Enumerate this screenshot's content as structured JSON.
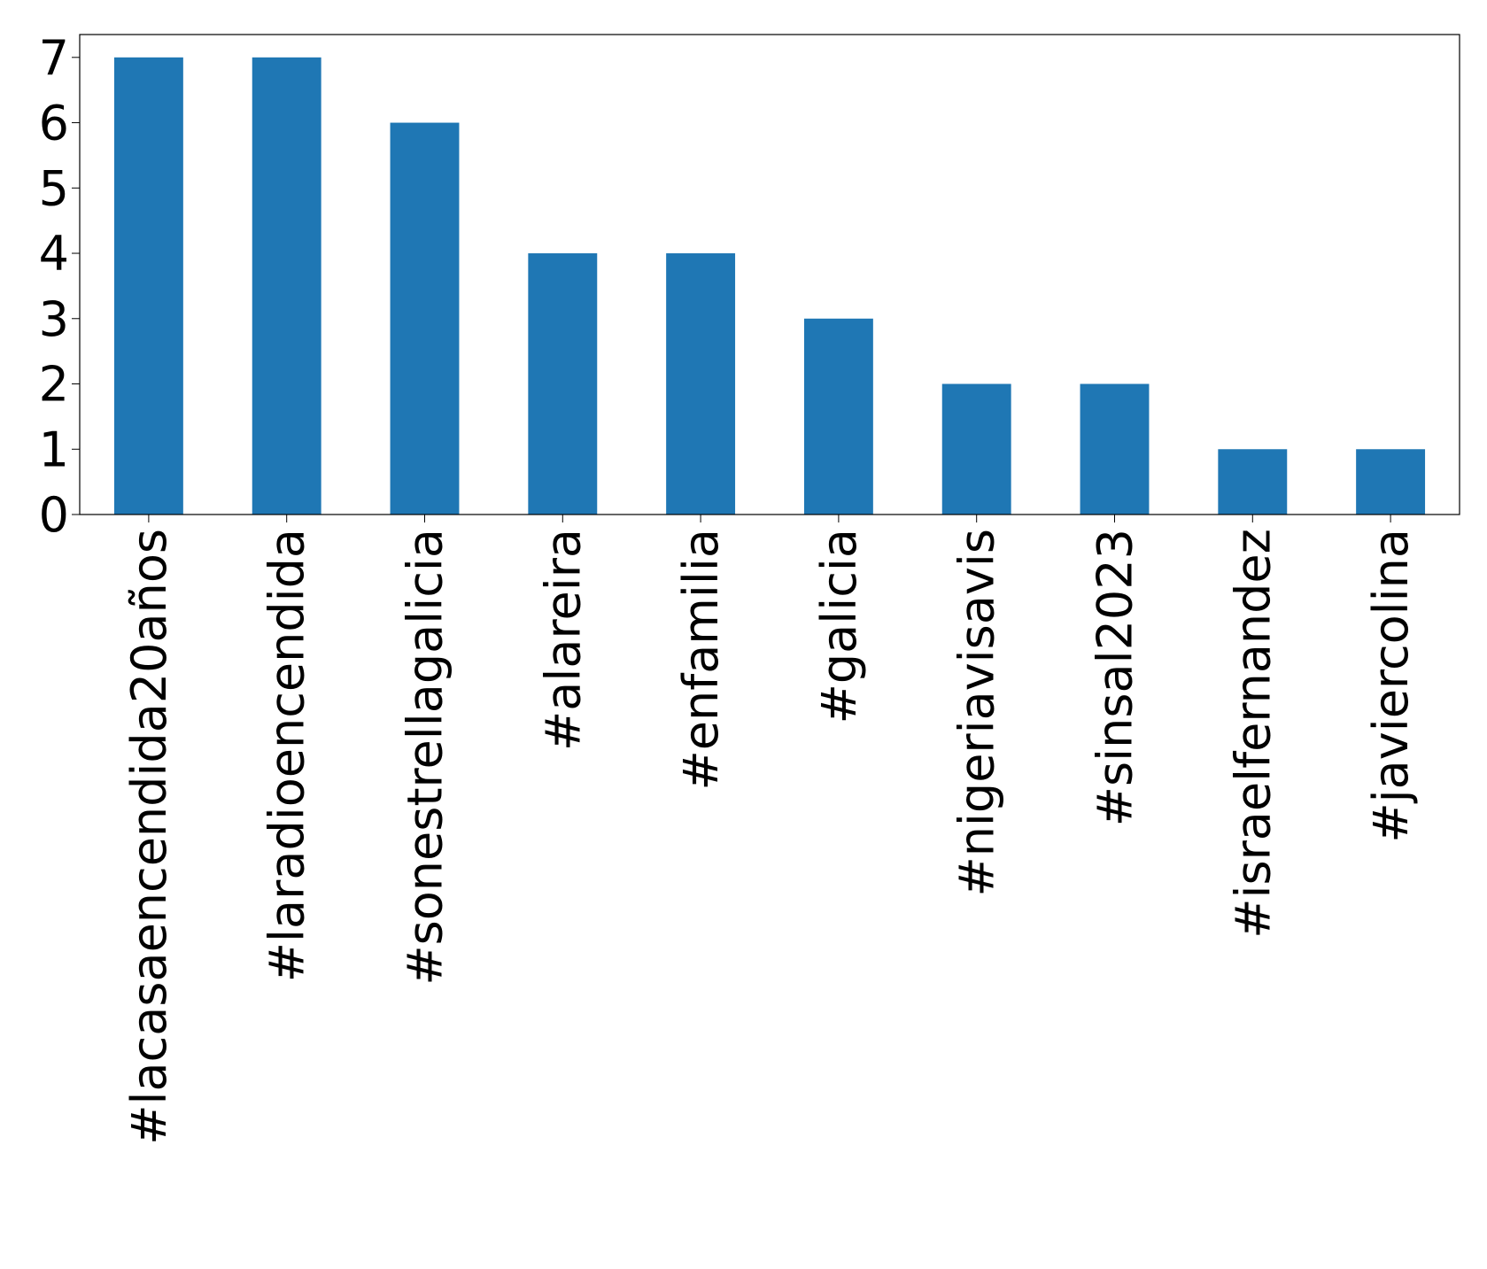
{
  "chart_data": {
    "type": "bar",
    "categories": [
      "#lacasaencendida20años",
      "#laradioencendida",
      "#sonestrellagalicia",
      "#alareira",
      "#enfamilia",
      "#galicia",
      "#nigeriavisavis",
      "#sinsal2023",
      "#israelfernandez",
      "#javiercolina"
    ],
    "values": [
      7,
      7,
      6,
      4,
      4,
      3,
      2,
      2,
      1,
      1
    ],
    "color": "#1f77b4",
    "ylim": [
      0,
      7.35
    ],
    "yticks": [
      0,
      1,
      2,
      3,
      4,
      5,
      6,
      7
    ],
    "grid": false
  }
}
